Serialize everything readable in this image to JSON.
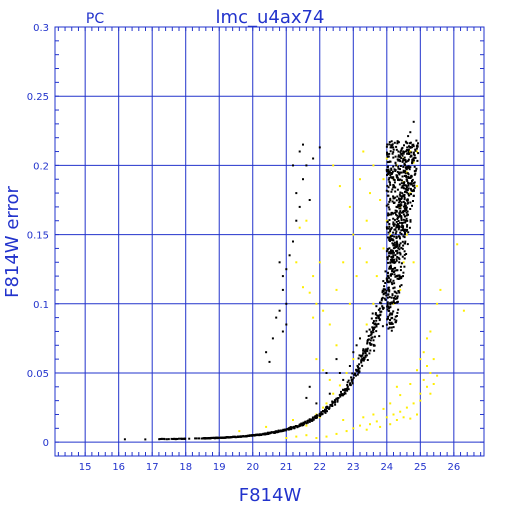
{
  "chart_data": {
    "type": "scatter",
    "title": "lmc_u4ax74",
    "subtitle": "PC",
    "xlabel": "F814W",
    "ylabel": "F814W error",
    "xlim": [
      14.1,
      26.9
    ],
    "ylim": [
      -0.01,
      0.3
    ],
    "xticks": [
      15,
      16,
      17,
      18,
      19,
      20,
      21,
      22,
      23,
      24,
      25,
      26
    ],
    "yticks": [
      0,
      0.05,
      0.1,
      0.15,
      0.2,
      0.25,
      0.3
    ],
    "ytick_labels": [
      "0",
      "0.05",
      "0.1",
      "0.15",
      "0.2",
      "0.25",
      "0.3"
    ],
    "grid": true,
    "series": [
      {
        "color": "#ffee00",
        "points": [
          [
            19.6,
            0.008
          ],
          [
            20.4,
            0.011
          ],
          [
            21.2,
            0.016
          ],
          [
            21.6,
            0.012
          ],
          [
            21.9,
            0.02
          ],
          [
            22.1,
            0.025
          ],
          [
            22.4,
            0.035
          ],
          [
            22.6,
            0.041
          ],
          [
            22.8,
            0.05
          ],
          [
            23.0,
            0.06
          ],
          [
            23.2,
            0.075
          ],
          [
            23.4,
            0.085
          ],
          [
            23.6,
            0.1
          ],
          [
            23.7,
            0.12
          ],
          [
            23.9,
            0.14
          ],
          [
            24.0,
            0.16
          ],
          [
            24.1,
            0.175
          ],
          [
            24.2,
            0.19
          ],
          [
            24.3,
            0.2
          ],
          [
            24.5,
            0.205
          ],
          [
            24.6,
            0.195
          ],
          [
            24.7,
            0.21
          ],
          [
            24.8,
            0.202
          ],
          [
            24.9,
            0.185
          ],
          [
            24.4,
            0.17
          ],
          [
            24.6,
            0.15
          ],
          [
            24.8,
            0.13
          ],
          [
            24.7,
            0.18
          ],
          [
            24.5,
            0.188
          ],
          [
            24.9,
            0.21
          ],
          [
            23.3,
            0.21
          ],
          [
            23.6,
            0.2
          ],
          [
            23.9,
            0.19
          ],
          [
            24.0,
            0.205
          ],
          [
            23.5,
            0.18
          ],
          [
            23.8,
            0.175
          ],
          [
            23.4,
            0.16
          ],
          [
            23.2,
            0.14
          ],
          [
            23.0,
            0.15
          ],
          [
            22.7,
            0.13
          ],
          [
            22.5,
            0.11
          ],
          [
            22.9,
            0.1
          ],
          [
            23.1,
            0.12
          ],
          [
            23.4,
            0.13
          ],
          [
            22.4,
            0.2
          ],
          [
            22.6,
            0.185
          ],
          [
            23.2,
            0.19
          ],
          [
            22.9,
            0.17
          ],
          [
            22.3,
            0.045
          ],
          [
            22.1,
            0.052
          ],
          [
            21.9,
            0.06
          ],
          [
            22.0,
            0.018
          ],
          [
            22.2,
            0.028
          ],
          [
            22.5,
            0.07
          ],
          [
            22.3,
            0.085
          ],
          [
            22.1,
            0.095
          ],
          [
            21.9,
            0.1
          ],
          [
            21.7,
            0.108
          ],
          [
            21.5,
            0.112
          ],
          [
            21.3,
            0.13
          ],
          [
            21.2,
            0.145
          ],
          [
            21.4,
            0.155
          ],
          [
            21.6,
            0.16
          ],
          [
            21.8,
            0.12
          ],
          [
            22.0,
            0.13
          ],
          [
            21.8,
            0.09
          ],
          [
            21.0,
            0.003
          ],
          [
            21.3,
            0.004
          ],
          [
            21.6,
            0.005
          ],
          [
            21.9,
            0.003
          ],
          [
            22.2,
            0.004
          ],
          [
            22.5,
            0.006
          ],
          [
            22.8,
            0.008
          ],
          [
            23.0,
            0.01
          ],
          [
            23.2,
            0.012
          ],
          [
            23.4,
            0.009
          ],
          [
            23.5,
            0.013
          ],
          [
            23.7,
            0.015
          ],
          [
            23.8,
            0.011
          ],
          [
            24.0,
            0.018
          ],
          [
            24.1,
            0.013
          ],
          [
            24.2,
            0.02
          ],
          [
            24.3,
            0.016
          ],
          [
            24.4,
            0.022
          ],
          [
            24.5,
            0.018
          ],
          [
            24.6,
            0.025
          ],
          [
            24.7,
            0.017
          ],
          [
            24.8,
            0.028
          ],
          [
            24.9,
            0.02
          ],
          [
            25.0,
            0.03
          ],
          [
            24.1,
            0.028
          ],
          [
            24.4,
            0.034
          ],
          [
            23.9,
            0.024
          ],
          [
            23.6,
            0.02
          ],
          [
            23.3,
            0.018
          ],
          [
            22.7,
            0.016
          ],
          [
            25.2,
            0.04
          ],
          [
            25.1,
            0.045
          ],
          [
            25.3,
            0.05
          ],
          [
            25.2,
            0.055
          ],
          [
            25.4,
            0.06
          ],
          [
            25.5,
            0.048
          ],
          [
            25.3,
            0.035
          ],
          [
            25.4,
            0.042
          ],
          [
            25.1,
            0.065
          ],
          [
            25.2,
            0.075
          ],
          [
            25.3,
            0.08
          ],
          [
            25.0,
            0.06
          ],
          [
            24.9,
            0.052
          ],
          [
            24.2,
            0.1
          ],
          [
            24.4,
            0.11
          ],
          [
            24.5,
            0.13
          ],
          [
            24.3,
            0.12
          ],
          [
            24.1,
            0.15
          ],
          [
            25.5,
            0.1
          ],
          [
            25.6,
            0.11
          ],
          [
            26.3,
            0.095
          ],
          [
            26.1,
            0.143
          ],
          [
            25.0,
            0.035
          ],
          [
            24.3,
            0.04
          ],
          [
            24.7,
            0.042
          ]
        ]
      }
    ],
    "black_outliers": [
      [
        20.8,
        0.13
      ],
      [
        20.9,
        0.12
      ],
      [
        21.0,
        0.125
      ],
      [
        20.9,
        0.11
      ],
      [
        21.1,
        0.135
      ],
      [
        21.0,
        0.1
      ],
      [
        21.2,
        0.145
      ],
      [
        21.3,
        0.16
      ],
      [
        21.4,
        0.17
      ],
      [
        21.5,
        0.19
      ],
      [
        21.3,
        0.18
      ],
      [
        21.6,
        0.2
      ],
      [
        21.2,
        0.2
      ],
      [
        21.4,
        0.21
      ],
      [
        21.5,
        0.215
      ],
      [
        21.7,
        0.175
      ],
      [
        20.6,
        0.075
      ],
      [
        20.4,
        0.065
      ],
      [
        20.5,
        0.058
      ],
      [
        20.7,
        0.09
      ],
      [
        20.8,
        0.095
      ],
      [
        21.0,
        0.085
      ],
      [
        20.9,
        0.08
      ],
      [
        22.0,
        0.213
      ],
      [
        21.8,
        0.205
      ],
      [
        22.2,
        0.05
      ],
      [
        22.5,
        0.06
      ],
      [
        21.7,
        0.04
      ],
      [
        21.6,
        0.032
      ],
      [
        21.9,
        0.028
      ],
      [
        22.3,
        0.035
      ],
      [
        22.7,
        0.045
      ],
      [
        22.9,
        0.055
      ],
      [
        22.6,
        0.05
      ],
      [
        23.0,
        0.065
      ],
      [
        23.2,
        0.075
      ],
      [
        23.4,
        0.08
      ],
      [
        23.1,
        0.07
      ]
    ]
  }
}
